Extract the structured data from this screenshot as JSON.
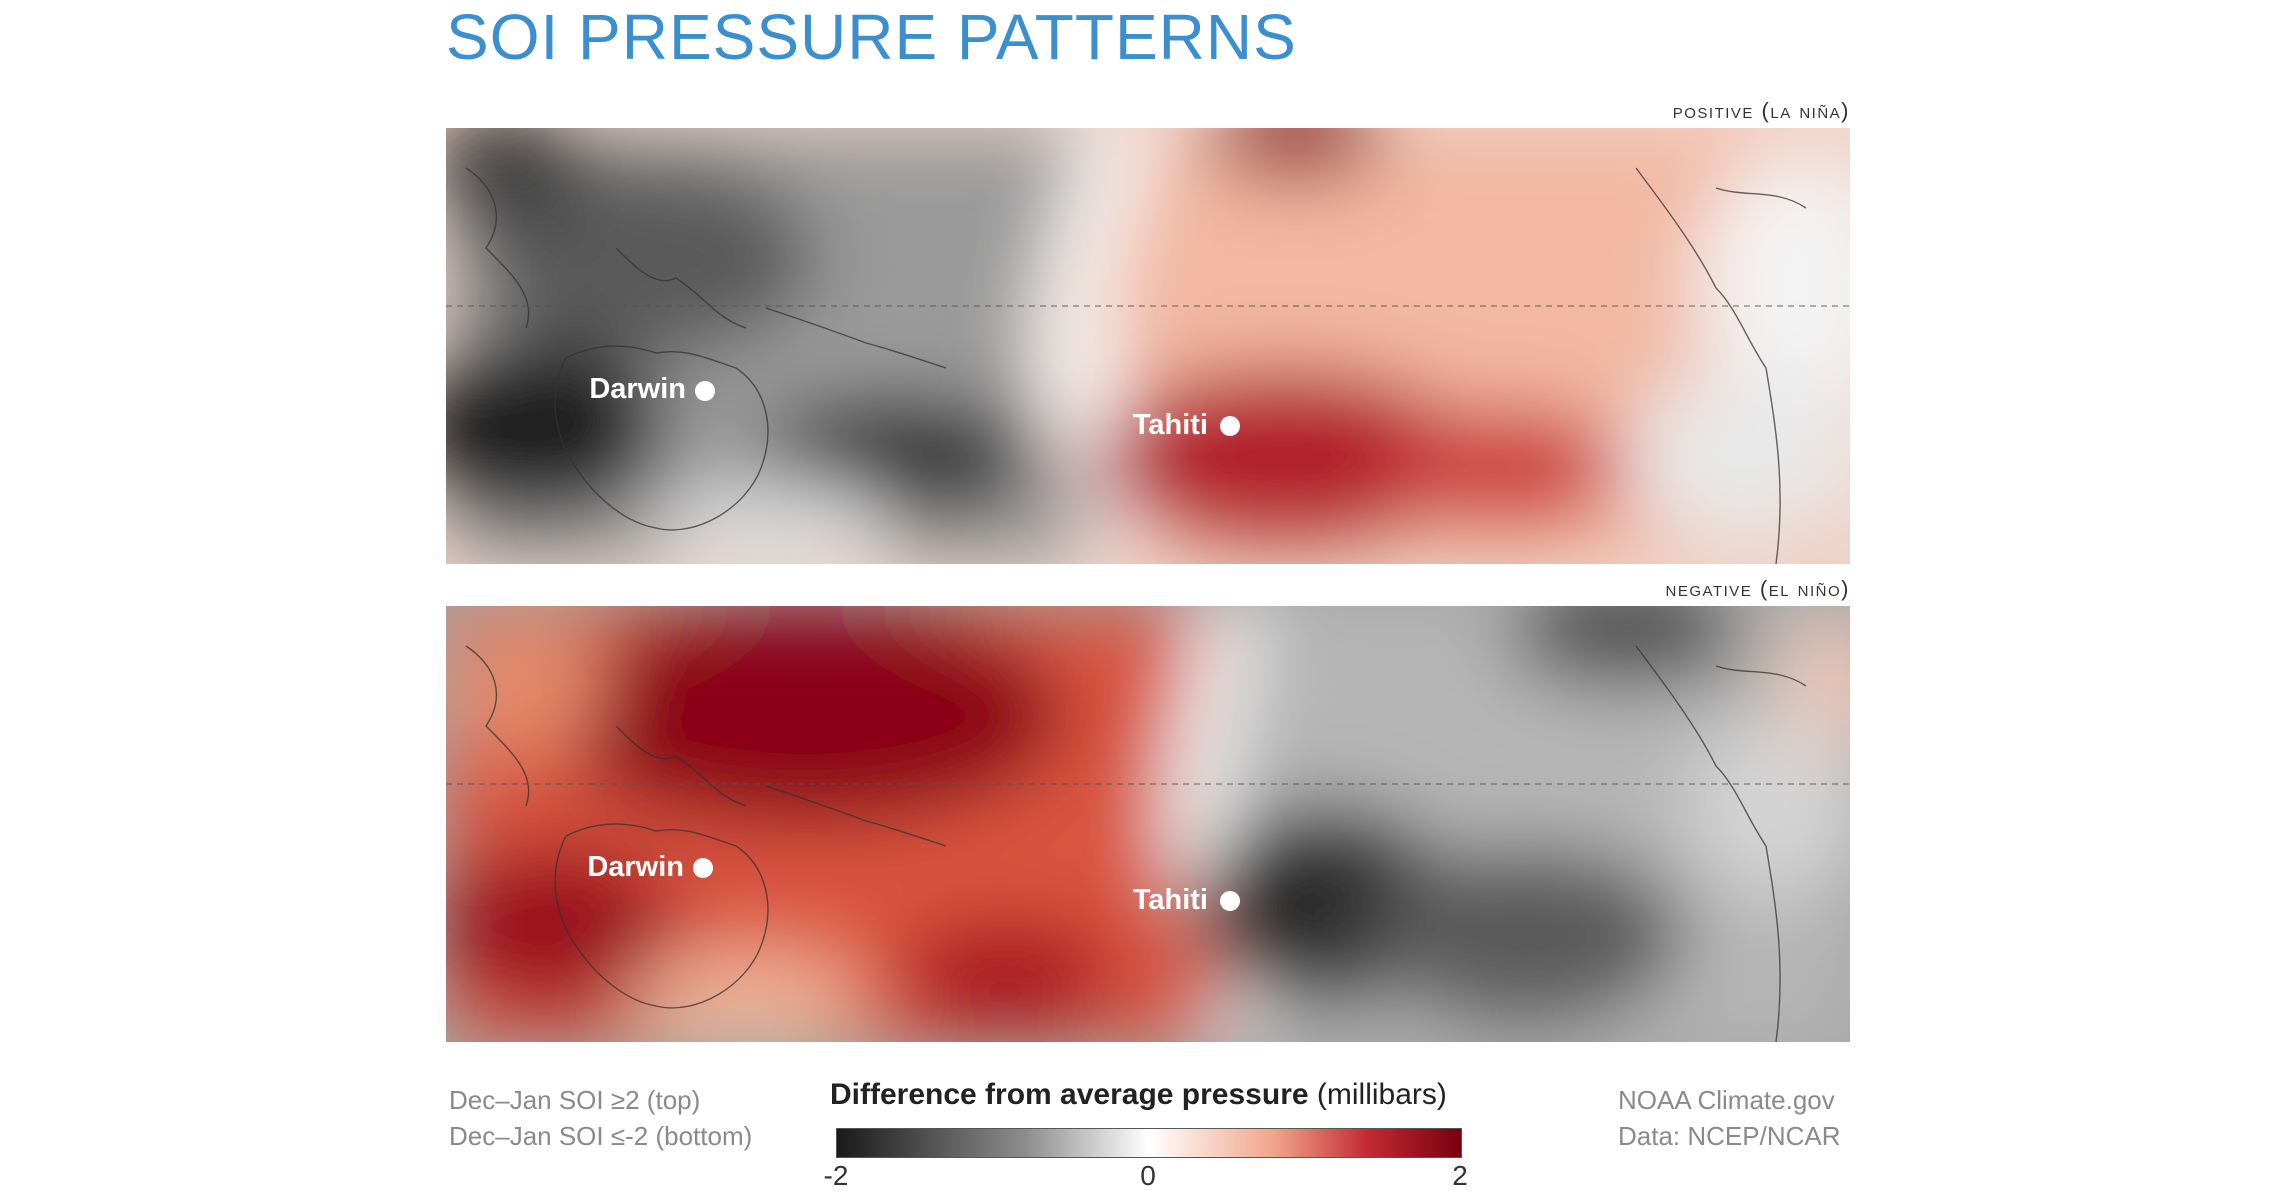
{
  "title": "SOI PRESSURE PATTERNS",
  "panels": [
    {
      "label": "positive (la niña)",
      "cities": [
        {
          "name": "Darwin"
        },
        {
          "name": "Tahiti"
        }
      ]
    },
    {
      "label": "negative (el niño)",
      "cities": [
        {
          "name": "Darwin"
        },
        {
          "name": "Tahiti"
        }
      ]
    }
  ],
  "footer": {
    "left_line1": "Dec–Jan SOI ≥2 (top)",
    "left_line2": "Dec–Jan SOI ≤-2 (bottom)",
    "right_line1": "NOAA Climate.gov",
    "right_line2": "Data: NCEP/NCAR"
  },
  "legend": {
    "title_bold": "Difference from average pressure",
    "title_unit": " (millibars)",
    "min_label": "-2",
    "mid_label": "0",
    "max_label": "2",
    "colors": {
      "low": "#1a1a1a",
      "mid": "#ffffff",
      "high": "#7a0010"
    }
  },
  "colors": {
    "title": "#3b8fcf",
    "positive_anomaly": "#b3132a",
    "negative_anomaly": "#2a2a2a"
  }
}
